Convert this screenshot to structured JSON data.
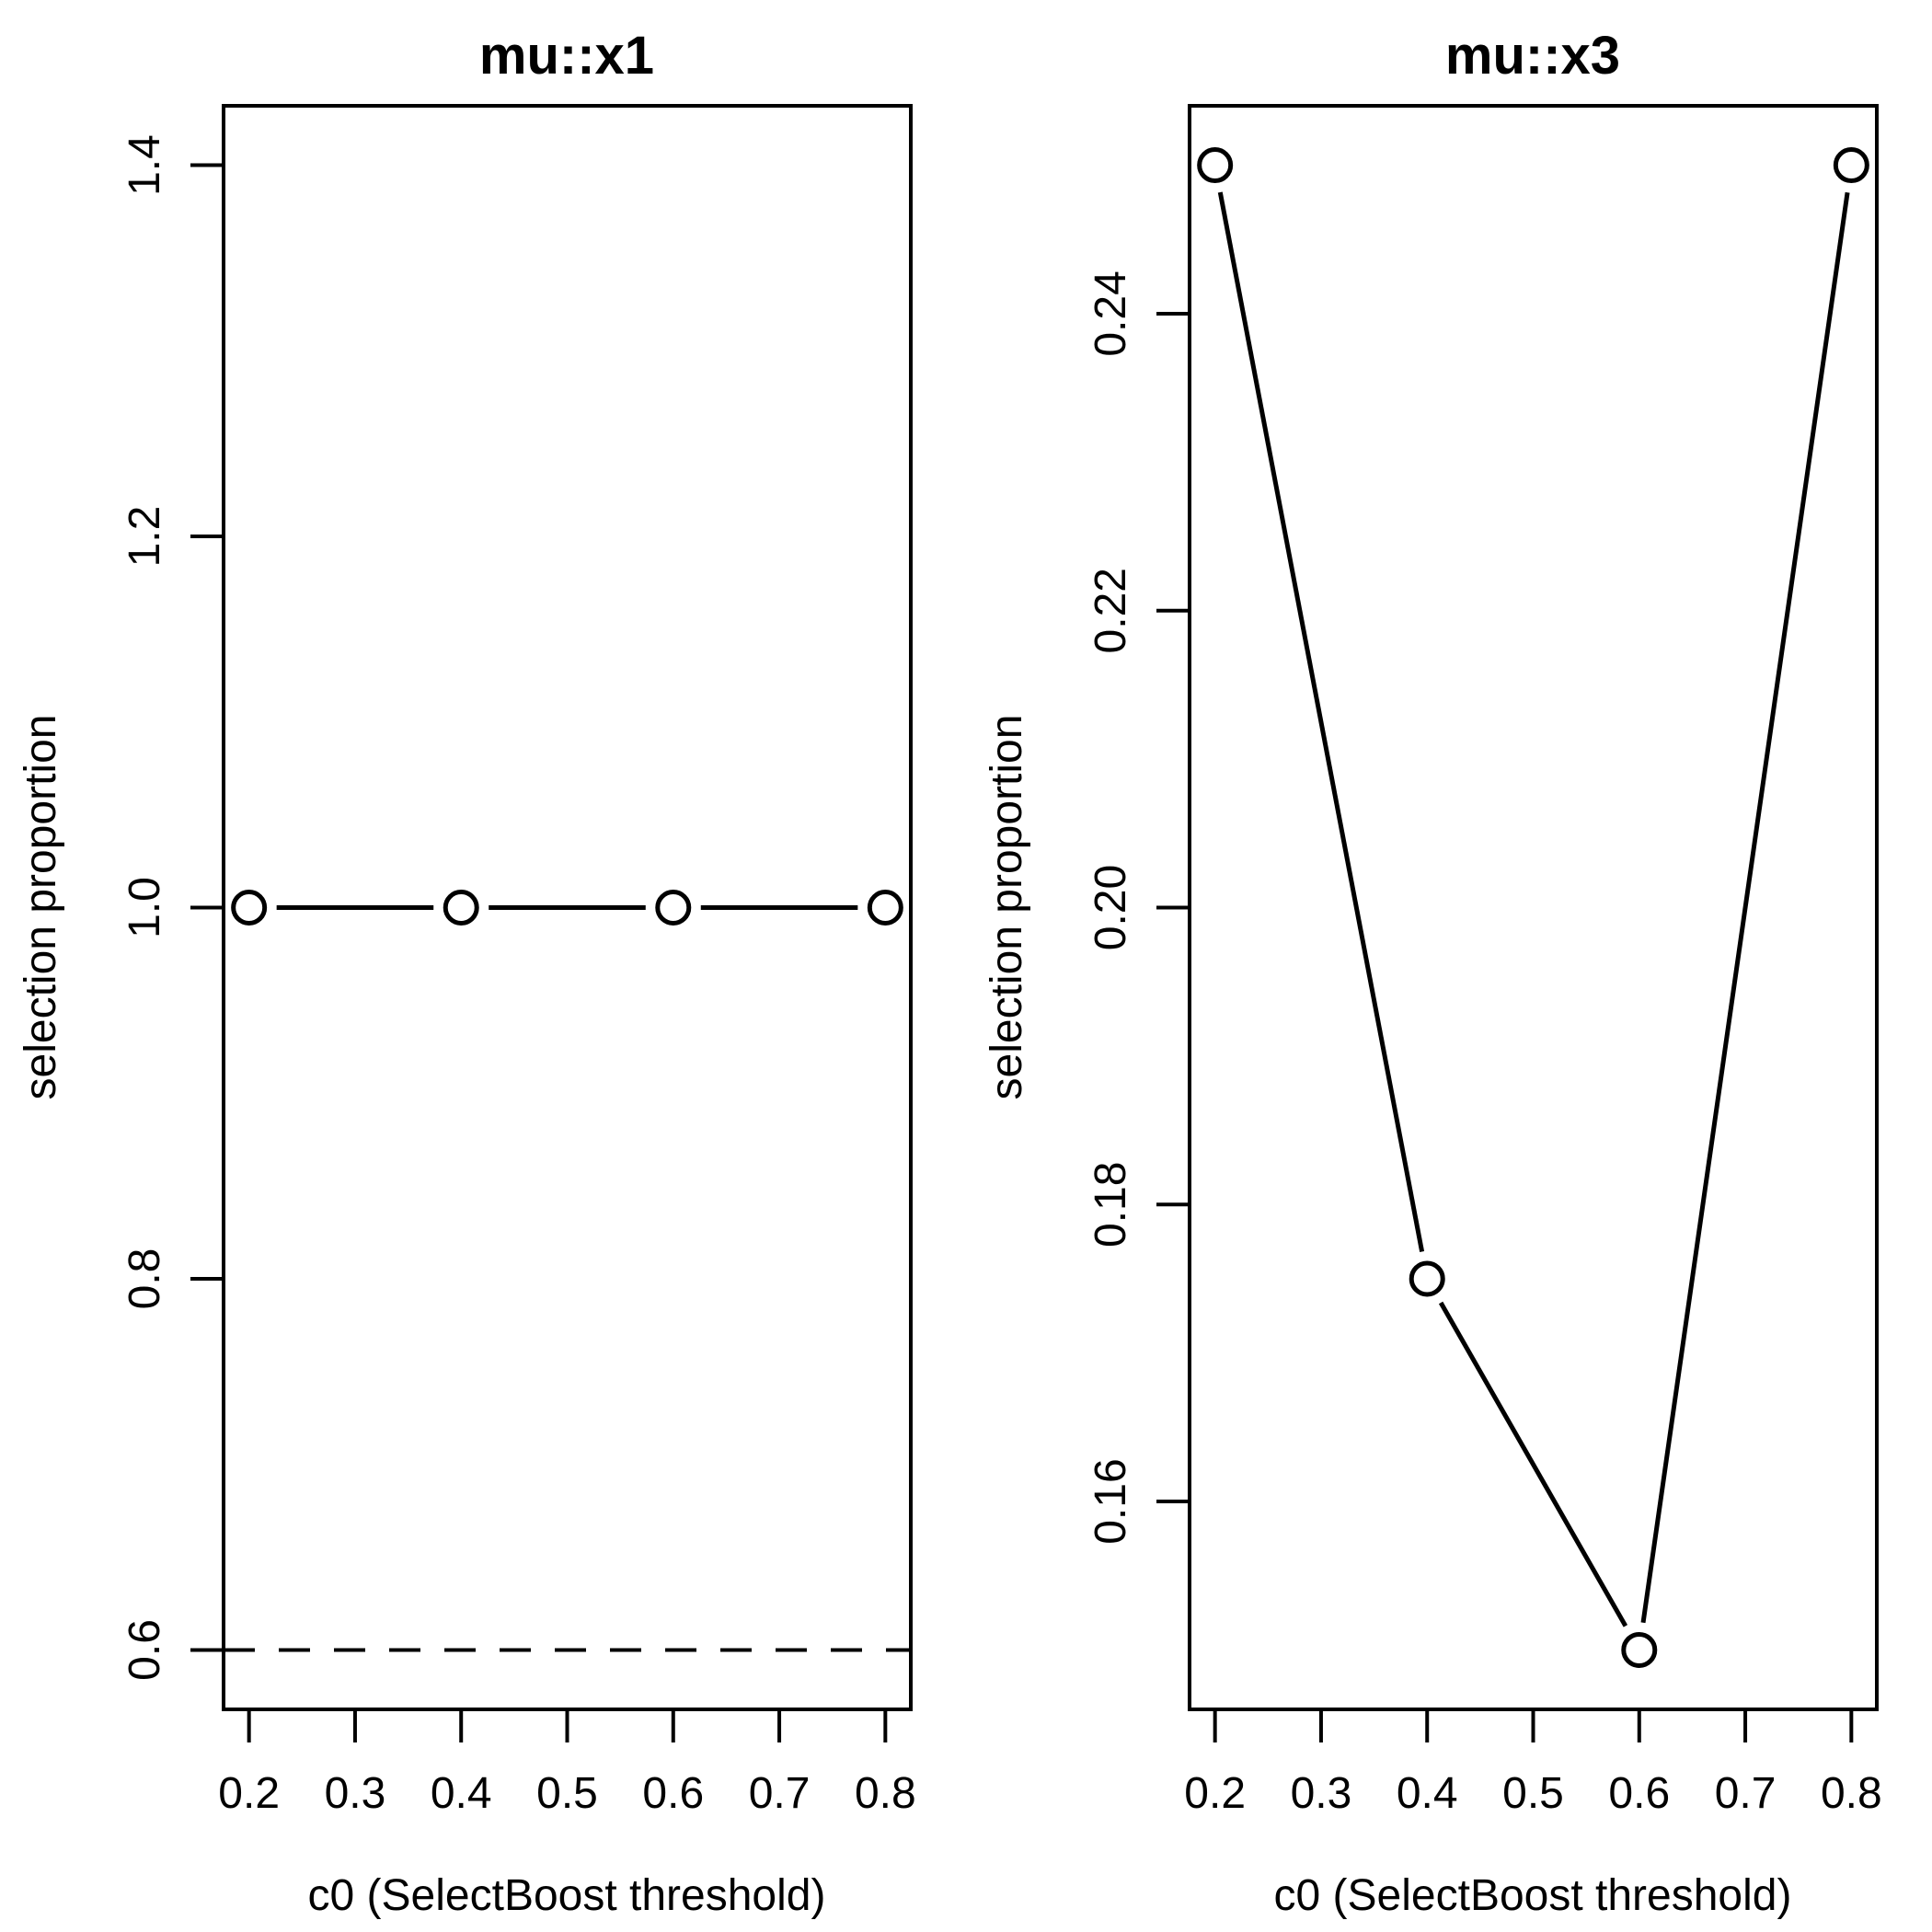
{
  "figure": {
    "background_color": "#ffffff",
    "stroke_color": "#000000",
    "panels": 2
  },
  "chart_data": [
    {
      "type": "line",
      "title": "mu::x1",
      "xlabel": "c0 (SelectBoost threshold)",
      "ylabel": "selection proportion",
      "x": [
        0.2,
        0.4,
        0.6,
        0.8
      ],
      "y": [
        1.0,
        1.0,
        1.0,
        1.0
      ],
      "xlim": [
        0.2,
        0.8
      ],
      "ylim": [
        0.6,
        1.4
      ],
      "xticks": [
        0.2,
        0.3,
        0.4,
        0.5,
        0.6,
        0.7,
        0.8
      ],
      "xtick_labels": [
        "0.2",
        "0.3",
        "0.4",
        "0.5",
        "0.6",
        "0.7",
        "0.8"
      ],
      "yticks": [
        0.6,
        0.8,
        1.0,
        1.2,
        1.4
      ],
      "ytick_labels": [
        "0.6",
        "0.8",
        "1.0",
        "1.2",
        "1.4"
      ],
      "marker": "open-circle",
      "line_type": "solid-segments-with-gaps",
      "hline_dashed_y": 0.6,
      "grid": false,
      "legend": null
    },
    {
      "type": "line",
      "title": "mu::x3",
      "xlabel": "c0 (SelectBoost threshold)",
      "ylabel": "selection proportion",
      "x": [
        0.2,
        0.4,
        0.6,
        0.8
      ],
      "y": [
        0.25,
        0.175,
        0.15,
        0.25
      ],
      "xlim": [
        0.2,
        0.8
      ],
      "ylim": [
        0.15,
        0.25
      ],
      "xticks": [
        0.2,
        0.3,
        0.4,
        0.5,
        0.6,
        0.7,
        0.8
      ],
      "xtick_labels": [
        "0.2",
        "0.3",
        "0.4",
        "0.5",
        "0.6",
        "0.7",
        "0.8"
      ],
      "yticks": [
        0.16,
        0.18,
        0.2,
        0.22,
        0.24
      ],
      "ytick_labels": [
        "0.16",
        "0.18",
        "0.20",
        "0.22",
        "0.24"
      ],
      "marker": "open-circle",
      "line_type": "solid-segments-with-gaps",
      "hline_dashed_y": null,
      "grid": false,
      "legend": null
    }
  ]
}
